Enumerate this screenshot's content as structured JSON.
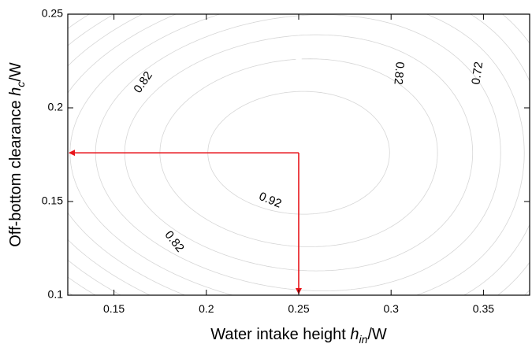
{
  "chart_data": {
    "type": "contour",
    "xlabel": {
      "prefix": "Water intake height ",
      "var": "h",
      "sub": "in",
      "suffix": "/W"
    },
    "ylabel": {
      "prefix": "Off-bottom clearance ",
      "var": "h",
      "sub": "c",
      "suffix": "/W"
    },
    "xlim": [
      0.125,
      0.375
    ],
    "ylim": [
      0.1,
      0.25
    ],
    "xticks": [
      0.15,
      0.2,
      0.25,
      0.3,
      0.35
    ],
    "yticks": [
      0.1,
      0.15,
      0.2,
      0.25
    ],
    "xtick_labels": [
      "0.15",
      "0.2",
      "0.25",
      "0.3",
      "0.35"
    ],
    "ytick_labels": [
      "0.1",
      "0.15",
      "0.2",
      "0.25"
    ],
    "optimum": {
      "x": 0.25,
      "y": 0.176
    },
    "contour_levels": [
      0.7,
      0.72,
      0.74,
      0.76,
      0.78,
      0.8,
      0.82,
      0.84,
      0.86,
      0.88,
      0.9,
      0.92
    ],
    "contour_labels": [
      {
        "text": "0.82",
        "x": 0.166,
        "y": 0.2135,
        "angle": -55
      },
      {
        "text": "0.82",
        "x": 0.304,
        "y": 0.2185,
        "angle": 95
      },
      {
        "text": "0.72",
        "x": 0.347,
        "y": 0.2185,
        "angle": -82
      },
      {
        "text": "0.92",
        "x": 0.2345,
        "y": 0.1505,
        "angle": 22
      },
      {
        "text": "0.82",
        "x": 0.1825,
        "y": 0.1285,
        "angle": 52
      }
    ],
    "colors": {
      "contour": "#d6d6d6",
      "arrow": "#e8151b",
      "axis": "#000000"
    },
    "grid": false
  }
}
